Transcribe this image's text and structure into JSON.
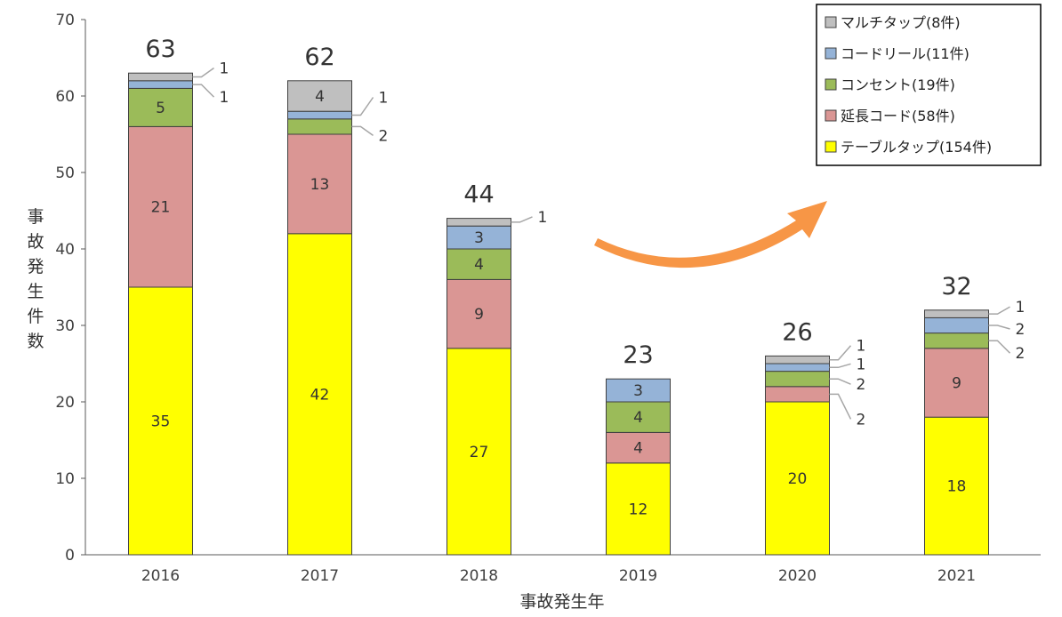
{
  "chart_data": {
    "type": "bar",
    "stacked": true,
    "categories": [
      "2016",
      "2017",
      "2018",
      "2019",
      "2020",
      "2021"
    ],
    "series": [
      {
        "name": "テーブルタップ(154件)",
        "color": "#ffff00",
        "values": [
          35,
          42,
          27,
          12,
          20,
          18
        ]
      },
      {
        "name": "延長コード(58件)",
        "color": "#da9694",
        "values": [
          21,
          13,
          9,
          4,
          2,
          9
        ]
      },
      {
        "name": "コンセント(19件)",
        "color": "#9bbb59",
        "values": [
          5,
          2,
          4,
          4,
          2,
          2
        ]
      },
      {
        "name": "コードリール(11件)",
        "color": "#95b3d7",
        "values": [
          1,
          1,
          3,
          3,
          1,
          2
        ]
      },
      {
        "name": "マルチタップ(8件)",
        "color": "#bfbfbf",
        "values": [
          1,
          4,
          1,
          0,
          1,
          1
        ]
      }
    ],
    "totals": [
      "63",
      "62",
      "44",
      "23",
      "26",
      "32"
    ],
    "xlabel": "事故発生年",
    "ylabel": "事故発生件数",
    "ylim": [
      0,
      70
    ],
    "yticks": [
      "0",
      "10",
      "20",
      "30",
      "40",
      "50",
      "60",
      "70"
    ],
    "grid": false,
    "legend_position": "top-right",
    "arrow": {
      "color": "#f79646",
      "direction": "up-right"
    }
  }
}
